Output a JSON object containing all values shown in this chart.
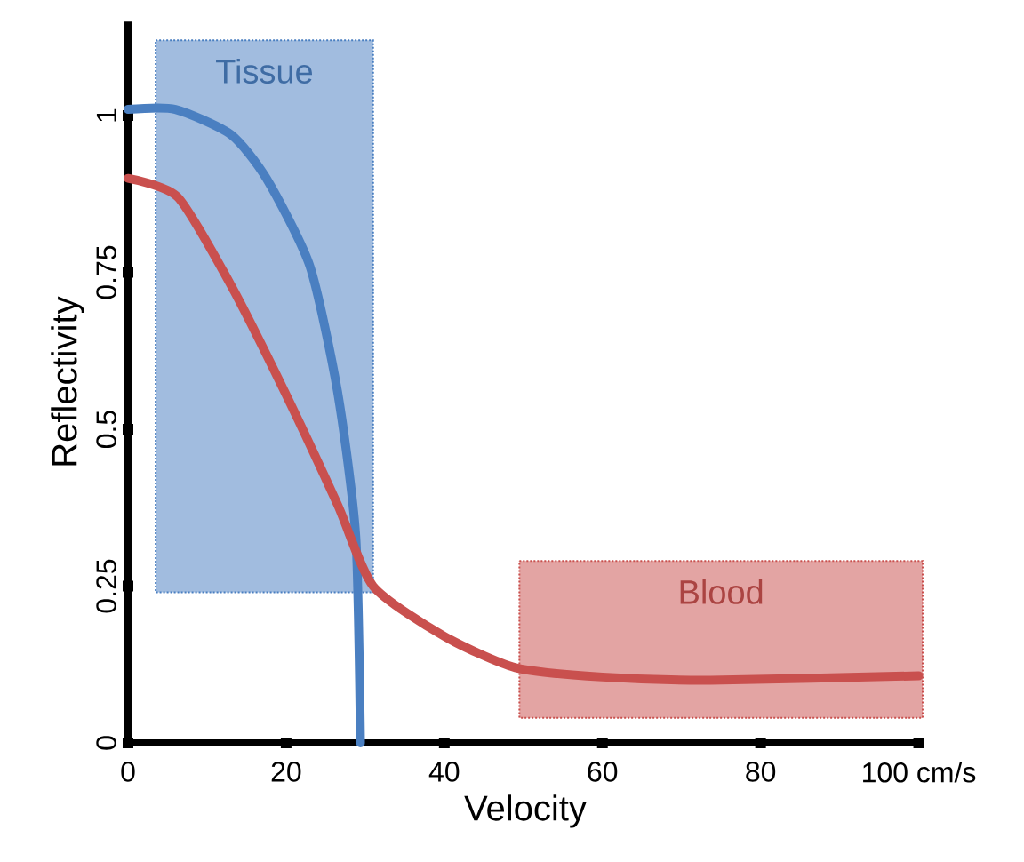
{
  "chart_data": {
    "type": "line",
    "xlabel": "Velocity",
    "ylabel": "Reflectivity",
    "xlim": [
      0,
      100.5
    ],
    "ylim": [
      0,
      1.15
    ],
    "xticks": [
      0,
      20,
      40,
      60,
      80,
      {
        "value": 100,
        "label": "100 cm/s"
      }
    ],
    "yticks": [
      0,
      0.25,
      0.5,
      0.75,
      1
    ],
    "grid": false,
    "marker": "none",
    "line_style": "solid",
    "series": [
      {
        "name": "Tissue",
        "color": "#4a7fc1",
        "x": [
          3.5,
          31
        ],
        "values": [
          null,
          null
        ],
        "lower": [
          0.24,
          0.24
        ],
        "upper": [
          1.12,
          1.12
        ]
      },
      {
        "name": "Blood",
        "color": "#c9504e",
        "x": [
          49.5,
          100.5
        ],
        "values": [
          null,
          null
        ],
        "lower": [
          0.04,
          0.04
        ],
        "upper": [
          0.29,
          0.29
        ]
      },
      {
        "type": "line",
        "color": "#4a7fc1",
        "x": [
          0,
          6,
          13,
          17.5,
          23,
          26.5,
          28.8,
          29.4
        ],
        "values": [
          1.01,
          1.01,
          0.97,
          0.9,
          0.76,
          0.56,
          0.33,
          0
        ]
      },
      {
        "type": "line",
        "color": "#c9504e",
        "x": [
          0,
          6.3,
          13,
          19.8,
          26.5,
          31,
          40,
          49,
          60,
          73.7,
          100
        ],
        "values": [
          0.9,
          0.87,
          0.73,
          0.56,
          0.38,
          0.25,
          0.17,
          0.12,
          0.105,
          0.1,
          0.107
        ]
      }
    ]
  }
}
